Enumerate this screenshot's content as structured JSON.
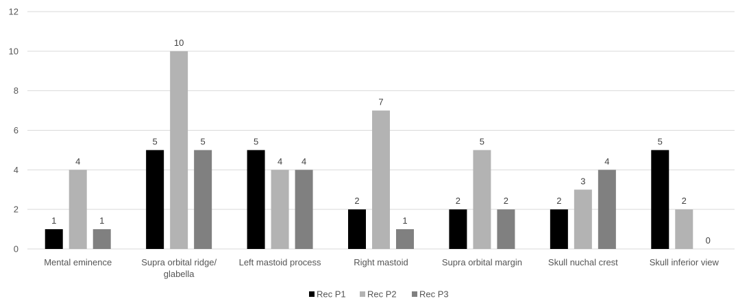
{
  "chart_data": {
    "type": "bar",
    "title": "",
    "xlabel": "",
    "ylabel": "",
    "ylim": [
      0,
      12
    ],
    "yticks": [
      0,
      2,
      4,
      6,
      8,
      10,
      12
    ],
    "grid": true,
    "legend_position": "bottom",
    "categories": [
      [
        "Mental eminence"
      ],
      [
        "Supra orbital ridge/",
        "glabella"
      ],
      [
        "Left mastoid process"
      ],
      [
        "Right mastoid"
      ],
      [
        "Supra orbital margin"
      ],
      [
        "Skull nuchal crest"
      ],
      [
        "Skull inferior view"
      ]
    ],
    "series": [
      {
        "name": "Rec P1",
        "color": "#000000",
        "values": [
          1,
          5,
          5,
          2,
          2,
          2,
          5
        ]
      },
      {
        "name": "Rec P2",
        "color": "#b3b3b3",
        "values": [
          4,
          10,
          4,
          7,
          5,
          3,
          2
        ]
      },
      {
        "name": "Rec P3",
        "color": "#808080",
        "values": [
          1,
          5,
          4,
          1,
          2,
          4,
          0
        ]
      }
    ]
  }
}
